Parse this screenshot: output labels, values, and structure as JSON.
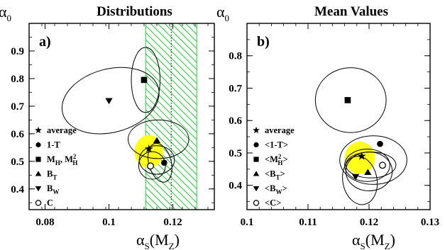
{
  "chart_data": [
    {
      "type": "scatter",
      "title": "Distributions",
      "panel_label": "a)",
      "ylabel": "α",
      "ylabel_sub": "0",
      "xlabel": "α",
      "xlabel_sub": "S",
      "xlabel_arg": "(M",
      "xlabel_arg_sub": "Z",
      "xlabel_close": ")",
      "xlim": [
        0.075,
        0.133
      ],
      "ylim": [
        0.325,
        1.0
      ],
      "xticks": [
        0.08,
        0.1,
        0.12
      ],
      "xtick_labels": [
        "0.08",
        "0.1",
        "0.12"
      ],
      "yticks": [
        0.4,
        0.5,
        0.6,
        0.7,
        0.8,
        0.9
      ],
      "ytick_labels": [
        "0.4",
        "0.5",
        "0.6",
        "0.7",
        "0.8",
        "0.9"
      ],
      "hatched_band": {
        "x": [
          0.1115,
          0.1275
        ],
        "color": "#2ecc40"
      },
      "dotted_line_x": 0.1195,
      "highlight": {
        "x": 0.1125,
        "y": 0.535,
        "rx": 0.0045,
        "ry": 0.06,
        "color": "#ffff1a"
      },
      "points": [
        {
          "name": "average",
          "marker": "star",
          "x": 0.1125,
          "y": 0.545
        },
        {
          "name": "1-T",
          "marker": "circle",
          "x": 0.1173,
          "y": 0.495
        },
        {
          "name": "M_H, M_H^2",
          "marker": "square",
          "x": 0.111,
          "y": 0.795
        },
        {
          "name": "B_T",
          "marker": "triangle-up",
          "x": 0.115,
          "y": 0.575
        },
        {
          "name": "B_W",
          "marker": "triangle-down",
          "x": 0.1,
          "y": 0.72
        },
        {
          "name": "C",
          "marker": "circle-open",
          "x": 0.113,
          "y": 0.483
        }
      ],
      "ellipses": [
        {
          "cx": 0.1115,
          "cy": 0.795,
          "rx": 0.0045,
          "ry": 0.118,
          "angle": 0
        },
        {
          "cx": 0.1005,
          "cy": 0.72,
          "rx": 0.0155,
          "ry": 0.115,
          "angle": -15
        },
        {
          "cx": 0.1155,
          "cy": 0.58,
          "rx": 0.0095,
          "ry": 0.07,
          "angle": 0
        },
        {
          "cx": 0.116,
          "cy": 0.495,
          "rx": 0.0035,
          "ry": 0.072,
          "angle": -15
        },
        {
          "cx": 0.115,
          "cy": 0.505,
          "rx": 0.0055,
          "ry": 0.052,
          "angle": 0
        },
        {
          "cx": 0.1135,
          "cy": 0.485,
          "rx": 0.0042,
          "ry": 0.05,
          "angle": 0
        }
      ],
      "legend": [
        {
          "marker": "star",
          "label": "average"
        },
        {
          "marker": "circle",
          "label": "1-T"
        },
        {
          "marker": "square",
          "label": "M",
          "sub": "H",
          "extra": ", M",
          "extra_sup": "2",
          "extra_sub": "H"
        },
        {
          "marker": "triangle-up",
          "label": "B",
          "sub": "T"
        },
        {
          "marker": "triangle-down",
          "label": "B",
          "sub": "W"
        },
        {
          "marker": "circle-open",
          "label": "C"
        }
      ]
    },
    {
      "type": "scatter",
      "title": "Mean Values",
      "panel_label": "b)",
      "ylabel": "α",
      "ylabel_sub": "0",
      "xlabel": "α",
      "xlabel_sub": "S",
      "xlabel_arg": "(M",
      "xlabel_arg_sub": "Z",
      "xlabel_close": ")",
      "xlim": [
        0.1,
        0.13
      ],
      "ylim": [
        0.325,
        0.9
      ],
      "xticks": [
        0.1,
        0.11,
        0.12,
        0.13
      ],
      "xtick_labels": [
        "0.1",
        "0.11",
        "0.12",
        "0.13"
      ],
      "yticks": [
        0.4,
        0.5,
        0.6,
        0.7,
        0.8
      ],
      "ytick_labels": [
        "0.4",
        "0.5",
        "0.6",
        "0.7",
        "0.8"
      ],
      "highlight": {
        "x": 0.1185,
        "y": 0.485,
        "rx": 0.0025,
        "ry": 0.05,
        "color": "#ffff1a"
      },
      "points": [
        {
          "name": "average",
          "marker": "star",
          "x": 0.1188,
          "y": 0.49
        },
        {
          "name": "<1-T>",
          "marker": "circle",
          "x": 0.1218,
          "y": 0.528
        },
        {
          "name": "<M_H^2>",
          "marker": "square",
          "x": 0.1165,
          "y": 0.663
        },
        {
          "name": "<B_T>",
          "marker": "triangle-up",
          "x": 0.1198,
          "y": 0.44
        },
        {
          "name": "<B_W>",
          "marker": "triangle-down",
          "x": 0.1178,
          "y": 0.427
        },
        {
          "name": "<C>",
          "marker": "circle-open",
          "x": 0.1222,
          "y": 0.462
        }
      ],
      "ellipses": [
        {
          "cx": 0.117,
          "cy": 0.663,
          "rx": 0.0058,
          "ry": 0.1,
          "angle": 0
        },
        {
          "cx": 0.1207,
          "cy": 0.478,
          "rx": 0.0055,
          "ry": 0.075,
          "angle": 0
        },
        {
          "cx": 0.12,
          "cy": 0.443,
          "rx": 0.0038,
          "ry": 0.06,
          "angle": 0
        },
        {
          "cx": 0.1197,
          "cy": 0.462,
          "rx": 0.0037,
          "ry": 0.05,
          "angle": 0
        },
        {
          "cx": 0.1185,
          "cy": 0.415,
          "rx": 0.0028,
          "ry": 0.075,
          "angle": -10
        },
        {
          "cx": 0.1203,
          "cy": 0.463,
          "rx": 0.0041,
          "ry": 0.04,
          "angle": 0
        }
      ],
      "legend": [
        {
          "marker": "star",
          "label": "average"
        },
        {
          "marker": "circle",
          "label": "<1-T>"
        },
        {
          "marker": "square",
          "label": "<M",
          "sup": "2",
          "sub": "H",
          "tail": ">"
        },
        {
          "marker": "triangle-up",
          "label": "<B",
          "sub": "T",
          "tail": ">"
        },
        {
          "marker": "triangle-down",
          "label": "<B",
          "sub": "W",
          "tail": ">"
        },
        {
          "marker": "circle-open",
          "label": "<C>"
        }
      ]
    }
  ]
}
